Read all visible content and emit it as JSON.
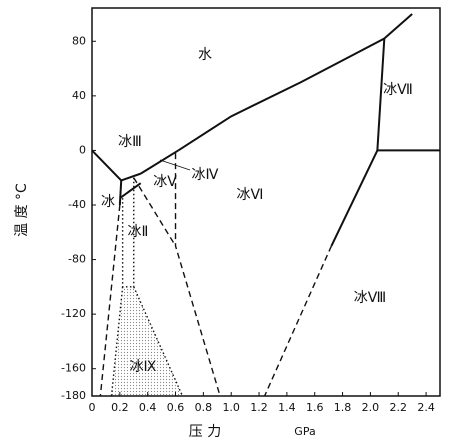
{
  "chart_data": {
    "type": "line",
    "x_label": "压 力",
    "x_unit": "GPa",
    "y_label": "温 度 °C",
    "xlim": [
      0,
      2.5
    ],
    "ylim": [
      -180,
      100
    ],
    "xticks": [
      0,
      0.2,
      0.4,
      0.6,
      0.8,
      {
        "value": 1,
        "label": "1.0"
      },
      1.2,
      1.4,
      1.6,
      1.8,
      {
        "value": 2,
        "label": "2.0"
      },
      2.2,
      2.4
    ],
    "yticks": [
      80,
      40,
      0,
      -40,
      -80,
      -120,
      -160,
      -180
    ],
    "color": "#111111",
    "series": [
      {
        "x": [
          0,
          0.21
        ],
        "values": [
          0,
          -22
        ],
        "dash": "solid"
      },
      {
        "x": [
          0.21,
          0.35
        ],
        "values": [
          -22,
          -17
        ],
        "dash": "solid"
      },
      {
        "x": [
          0.35,
          0.62
        ],
        "values": [
          -17,
          0
        ],
        "dash": "solid"
      },
      {
        "x": [
          0.62,
          1.0,
          1.5,
          2.1
        ],
        "values": [
          0,
          25,
          50,
          82
        ],
        "dash": "solid"
      },
      {
        "x": [
          2.1,
          2.3
        ],
        "values": [
          82,
          100
        ],
        "dash": "solid"
      },
      {
        "x": [
          2.1,
          2.05,
          2.5
        ],
        "values": [
          82,
          0,
          0
        ],
        "dash": "solid"
      },
      {
        "x": [
          2.05,
          1.72
        ],
        "values": [
          0,
          -70
        ],
        "dash": "solid"
      },
      {
        "x": [
          1.72,
          1.24
        ],
        "values": [
          -70,
          -180
        ],
        "dash": "dashed"
      },
      {
        "x": [
          0.21,
          0.2
        ],
        "values": [
          -22,
          -40
        ],
        "dash": "solid"
      },
      {
        "x": [
          0.2,
          0.35
        ],
        "values": [
          -35,
          -24
        ],
        "dash": "solid"
      },
      {
        "x": [
          0.2,
          0.06
        ],
        "values": [
          -40,
          -180
        ],
        "dash": "dashed"
      },
      {
        "x": [
          0.3,
          0.3
        ],
        "values": [
          -20,
          -100
        ],
        "dash": "dotted"
      },
      {
        "x": [
          0.22,
          0.22,
          0.3
        ],
        "values": [
          -35,
          -100,
          -100
        ],
        "dash": "dotted"
      },
      {
        "x": [
          0.22,
          0.14
        ],
        "values": [
          -100,
          -180
        ],
        "dash": "dotted"
      },
      {
        "x": [
          0.3,
          0.65
        ],
        "values": [
          -100,
          -180
        ],
        "dash": "dotted"
      },
      {
        "x": [
          0.6,
          0.6,
          0.92
        ],
        "values": [
          -2,
          -70,
          -180
        ],
        "dash": "dashed"
      },
      {
        "x": [
          0.3,
          0.6
        ],
        "values": [
          -20,
          -70
        ],
        "dash": "dashed"
      }
    ],
    "annotations": [
      "水",
      "冰Ⅶ",
      "冰Ⅲ",
      "冰Ⅳ",
      "冰Ⅴ",
      "冰Ⅵ",
      "冰",
      "冰Ⅱ",
      "冰Ⅷ",
      "冰Ⅸ"
    ]
  }
}
